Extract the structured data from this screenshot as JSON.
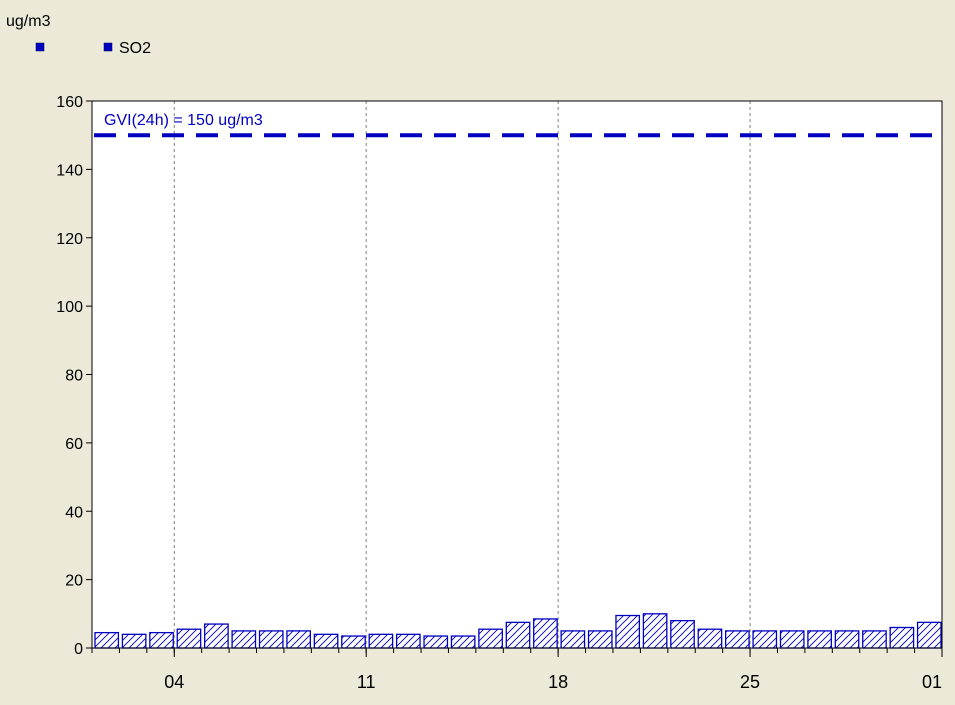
{
  "chart_data": {
    "type": "bar",
    "ylabel": "ug/m3",
    "legend": {
      "placement": "top-left",
      "entries": [
        "",
        "SO2"
      ]
    },
    "series": [
      {
        "name": "SO2",
        "color": "#0000c0",
        "fill_pattern": "diagonal-hatch",
        "values": [
          4.5,
          4,
          4.5,
          5.5,
          7,
          5,
          5,
          5,
          4,
          3.5,
          4,
          4,
          3.5,
          3.5,
          5.5,
          7.5,
          8.5,
          5,
          5,
          9.5,
          10,
          8,
          5.5,
          5,
          5,
          5,
          5,
          5,
          5,
          6,
          7.5
        ]
      }
    ],
    "x_axis": {
      "ticks": [
        {
          "label": "04",
          "day": 4
        },
        {
          "label": "11",
          "day": 11
        },
        {
          "label": "18",
          "day": 18
        },
        {
          "label": "25",
          "day": 25
        },
        {
          "label": "01",
          "day": 32
        }
      ],
      "first_day": 1,
      "last_day": 32,
      "grid": "vertical-dashed"
    },
    "y_axis": {
      "ylim": [
        0,
        160
      ],
      "ticks": [
        0,
        20,
        40,
        60,
        80,
        100,
        120,
        140,
        160
      ]
    },
    "limit_line": {
      "value": 150,
      "label": "GVI(24h) = 150 ug/m3",
      "style": "dashed",
      "color": "#0000c0"
    }
  }
}
